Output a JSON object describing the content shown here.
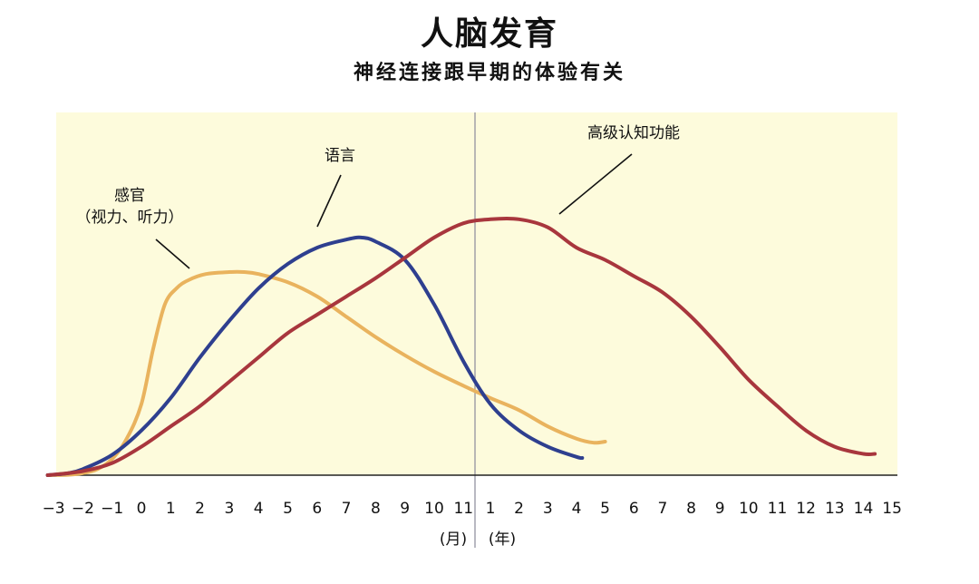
{
  "title": "人脑发育",
  "subtitle": "神经连接跟早期的体验有关",
  "chart_data": {
    "type": "line",
    "x_tick_labels": [
      "−3",
      "−2",
      "−1",
      "0",
      "1",
      "2",
      "3",
      "4",
      "5",
      "6",
      "7",
      "8",
      "9",
      "10",
      "11",
      "1",
      "2",
      "3",
      "4",
      "5",
      "6",
      "7",
      "8",
      "9",
      "10",
      "11",
      "12",
      "13",
      "14",
      "15"
    ],
    "x_unit_labels": {
      "months": "(月)",
      "years": "(年)"
    },
    "divider_between": [
      "11",
      "1"
    ],
    "y_axis": "unlabeled",
    "background_color": "#fdfbdc",
    "series": [
      {
        "name": "感官\n（视力、听力）",
        "label_lines": [
          "感官",
          "（视力、听力）"
        ],
        "color": "#e9b35e",
        "points": [
          [
            -3.2,
            0
          ],
          [
            -2.5,
            0.2
          ],
          [
            -2,
            1
          ],
          [
            -1.5,
            3
          ],
          [
            -1,
            8
          ],
          [
            -0.5,
            18
          ],
          [
            0,
            35
          ],
          [
            0.4,
            62
          ],
          [
            0.8,
            84
          ],
          [
            1.2,
            92
          ],
          [
            1.6,
            96
          ],
          [
            2.2,
            99
          ],
          [
            3,
            100
          ],
          [
            3.5,
            100
          ],
          [
            4,
            99
          ],
          [
            5,
            95
          ],
          [
            6,
            88
          ],
          [
            7,
            78
          ],
          [
            8,
            68
          ],
          [
            9,
            59
          ],
          [
            10,
            51
          ],
          [
            11,
            44
          ],
          [
            1,
            38
          ],
          [
            2,
            32
          ],
          [
            3,
            24
          ],
          [
            4,
            18
          ],
          [
            4.6,
            16
          ],
          [
            5,
            16.5
          ]
        ],
        "peak": 3.5
      },
      {
        "name": "语言",
        "color": "#2e3f8f",
        "points": [
          [
            -3.2,
            0
          ],
          [
            -2.5,
            1
          ],
          [
            -2,
            3
          ],
          [
            -1,
            10
          ],
          [
            0,
            22
          ],
          [
            1,
            38
          ],
          [
            2,
            58
          ],
          [
            3,
            76
          ],
          [
            4,
            92
          ],
          [
            5,
            104
          ],
          [
            6,
            112
          ],
          [
            7,
            116
          ],
          [
            7.5,
            117
          ],
          [
            8,
            115
          ],
          [
            9,
            106
          ],
          [
            10,
            84
          ],
          [
            11,
            56
          ],
          [
            1,
            35
          ],
          [
            2,
            22
          ],
          [
            3,
            14
          ],
          [
            4,
            9
          ],
          [
            4.2,
            8.5
          ]
        ],
        "peak": 7.5
      },
      {
        "name": "高级认知功能",
        "color": "#a8363d",
        "points": [
          [
            -3.2,
            0
          ],
          [
            -2,
            2
          ],
          [
            -1,
            6
          ],
          [
            0,
            14
          ],
          [
            1,
            24
          ],
          [
            2,
            34
          ],
          [
            3,
            46
          ],
          [
            4,
            58
          ],
          [
            5,
            70
          ],
          [
            6,
            79
          ],
          [
            7,
            88
          ],
          [
            8,
            97
          ],
          [
            9,
            107
          ],
          [
            10,
            117
          ],
          [
            11,
            124
          ],
          [
            1,
            126
          ],
          [
            2,
            126
          ],
          [
            3,
            122
          ],
          [
            4,
            112
          ],
          [
            5,
            106
          ],
          [
            6,
            98
          ],
          [
            7,
            90
          ],
          [
            8,
            78
          ],
          [
            9,
            63
          ],
          [
            10,
            47
          ],
          [
            11,
            34
          ],
          [
            12,
            22
          ],
          [
            13,
            14
          ],
          [
            14,
            10.5
          ],
          [
            14.4,
            10.5
          ]
        ],
        "peak": 1.5
      }
    ]
  }
}
